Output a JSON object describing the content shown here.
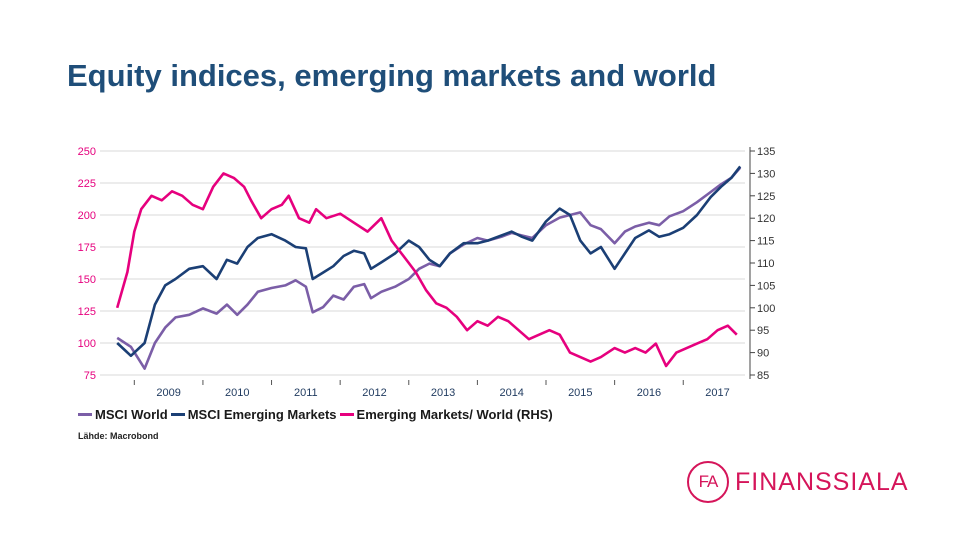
{
  "slide": {
    "title": "Equity indices, emerging markets and world",
    "source": "Lähde: Macrobond"
  },
  "logo": {
    "mark": "FA",
    "name": "FINANSSIALA",
    "color": "#d5155a"
  },
  "chart_data": {
    "type": "line",
    "title": "Equity indices, emerging markets and world",
    "x_ticks": [
      "2009",
      "2010",
      "2011",
      "2012",
      "2013",
      "2014",
      "2015",
      "2016",
      "2017"
    ],
    "xlim": [
      2008.5,
      2017.9
    ],
    "left_axis": {
      "ylim": [
        75,
        250
      ],
      "ticks": [
        "250",
        "225",
        "200",
        "175",
        "150",
        "125",
        "100",
        "75"
      ]
    },
    "right_axis": {
      "ylim": [
        85,
        135
      ],
      "ticks": [
        "135",
        "130",
        "125",
        "120",
        "115",
        "110",
        "105",
        "100",
        "95",
        "90",
        "85"
      ]
    },
    "legend": [
      "MSCI World",
      "MSCI Emerging Markets",
      "Emerging Markets/ World (RHS)"
    ],
    "grid": "horizontal",
    "series": [
      {
        "name": "MSCI World",
        "axis": "left",
        "color": "#7b5ea7",
        "x": [
          2008.75,
          2008.95,
          2009.15,
          2009.3,
          2009.45,
          2009.6,
          2009.8,
          2010.0,
          2010.2,
          2010.35,
          2010.5,
          2010.65,
          2010.8,
          2011.0,
          2011.2,
          2011.35,
          2011.5,
          2011.6,
          2011.75,
          2011.9,
          2012.05,
          2012.2,
          2012.35,
          2012.45,
          2012.6,
          2012.8,
          2013.0,
          2013.15,
          2013.3,
          2013.45,
          2013.6,
          2013.8,
          2014.0,
          2014.15,
          2014.35,
          2014.5,
          2014.65,
          2014.8,
          2015.0,
          2015.2,
          2015.35,
          2015.5,
          2015.65,
          2015.8,
          2016.0,
          2016.15,
          2016.3,
          2016.5,
          2016.65,
          2016.8,
          2017.0,
          2017.2,
          2017.4,
          2017.55,
          2017.7,
          2017.83
        ],
        "values": [
          104,
          97,
          80,
          100,
          112,
          120,
          122,
          127,
          123,
          130,
          122,
          130,
          140,
          143,
          145,
          149,
          144,
          124,
          128,
          137,
          134,
          144,
          146,
          135,
          140,
          144,
          150,
          158,
          162,
          160,
          170,
          177,
          182,
          180,
          183,
          186,
          184,
          182,
          192,
          198,
          200,
          202,
          192,
          189,
          178,
          187,
          191,
          194,
          192,
          199,
          203,
          210,
          218,
          224,
          229,
          237
        ]
      },
      {
        "name": "MSCI Emerging Markets",
        "axis": "left",
        "color": "#1b3f75",
        "x": [
          2008.75,
          2008.95,
          2009.15,
          2009.3,
          2009.45,
          2009.6,
          2009.8,
          2010.0,
          2010.2,
          2010.35,
          2010.5,
          2010.65,
          2010.8,
          2011.0,
          2011.2,
          2011.35,
          2011.5,
          2011.6,
          2011.75,
          2011.9,
          2012.05,
          2012.2,
          2012.35,
          2012.45,
          2012.6,
          2012.8,
          2013.0,
          2013.15,
          2013.3,
          2013.45,
          2013.6,
          2013.8,
          2014.0,
          2014.15,
          2014.35,
          2014.5,
          2014.65,
          2014.8,
          2015.0,
          2015.2,
          2015.35,
          2015.5,
          2015.65,
          2015.8,
          2016.0,
          2016.15,
          2016.3,
          2016.5,
          2016.65,
          2016.8,
          2017.0,
          2017.2,
          2017.4,
          2017.55,
          2017.7,
          2017.83
        ],
        "values": [
          100,
          90,
          100,
          130,
          145,
          150,
          158,
          160,
          150,
          165,
          162,
          175,
          182,
          185,
          180,
          175,
          174,
          150,
          155,
          160,
          168,
          172,
          170,
          158,
          163,
          170,
          180,
          175,
          165,
          160,
          170,
          178,
          178,
          180,
          184,
          187,
          183,
          180,
          195,
          205,
          200,
          180,
          170,
          175,
          158,
          170,
          182,
          188,
          183,
          185,
          190,
          200,
          214,
          222,
          229,
          238
        ]
      },
      {
        "name": "Emerging Markets/ World (RHS)",
        "axis": "right",
        "color": "#e6007e",
        "x": [
          2008.75,
          2008.9,
          2009.0,
          2009.1,
          2009.25,
          2009.4,
          2009.55,
          2009.7,
          2009.85,
          2010.0,
          2010.15,
          2010.3,
          2010.45,
          2010.6,
          2010.7,
          2010.85,
          2011.0,
          2011.15,
          2011.25,
          2011.4,
          2011.55,
          2011.65,
          2011.8,
          2012.0,
          2012.2,
          2012.4,
          2012.6,
          2012.75,
          2012.9,
          2013.0,
          2013.1,
          2013.25,
          2013.4,
          2013.55,
          2013.7,
          2013.85,
          2014.0,
          2014.15,
          2014.3,
          2014.45,
          2014.6,
          2014.75,
          2014.9,
          2015.05,
          2015.2,
          2015.35,
          2015.5,
          2015.65,
          2015.8,
          2016.0,
          2016.15,
          2016.3,
          2016.45,
          2016.6,
          2016.75,
          2016.9,
          2017.05,
          2017.2,
          2017.35,
          2017.5,
          2017.65,
          2017.78
        ],
        "values": [
          100,
          108,
          117,
          122,
          125,
          124,
          126,
          125,
          123,
          122,
          127,
          130,
          129,
          127,
          124,
          120,
          122,
          123,
          125,
          120,
          119,
          122,
          120,
          121,
          119,
          117,
          120,
          115,
          112,
          110,
          108,
          104,
          101,
          100,
          98,
          95,
          97,
          96,
          98,
          97,
          95,
          93,
          94,
          95,
          94,
          90,
          89,
          88,
          89,
          91,
          90,
          91,
          90,
          92,
          87,
          90,
          91,
          92,
          93,
          95,
          96,
          94
        ]
      }
    ]
  }
}
